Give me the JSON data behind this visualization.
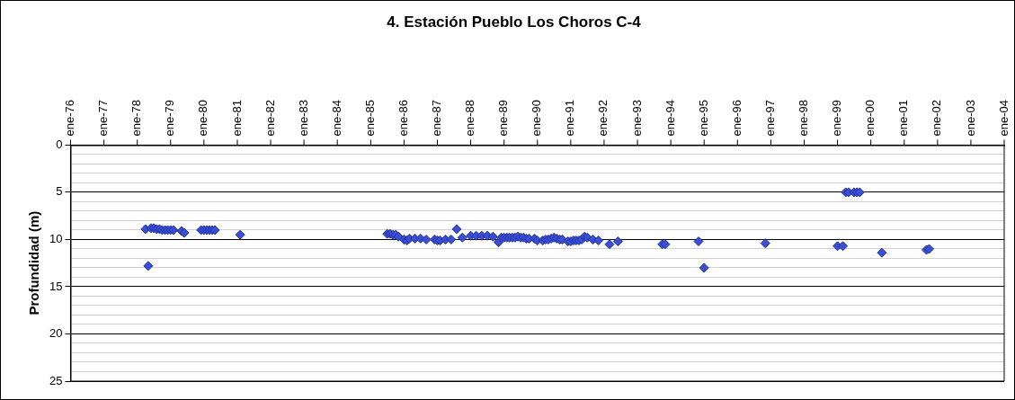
{
  "chart_data": {
    "type": "scatter",
    "title": "4. Estación Pueblo Los Choros C-4",
    "ylabel": "Profundidad (m)",
    "x": [
      "1978-04",
      "1978-05",
      "1978-06",
      "1978-07",
      "1978-08",
      "1978-09",
      "1978-10",
      "1978-11",
      "1978-12",
      "1979-01",
      "1979-02",
      "1979-05",
      "1979-06",
      "1979-12",
      "1980-01",
      "1980-02",
      "1980-03",
      "1980-04",
      "1980-05",
      "1981-02",
      "1985-07",
      "1985-08",
      "1985-09",
      "1985-10",
      "1985-11",
      "1986-01",
      "1986-02",
      "1986-03",
      "1986-05",
      "1986-07",
      "1986-09",
      "1986-12",
      "1987-01",
      "1987-02",
      "1987-04",
      "1987-06",
      "1987-08",
      "1987-10",
      "1988-01",
      "1988-03",
      "1988-05",
      "1988-07",
      "1988-09",
      "1988-11",
      "1988-12",
      "1989-01",
      "1989-02",
      "1989-03",
      "1989-04",
      "1989-05",
      "1989-06",
      "1989-07",
      "1989-08",
      "1989-09",
      "1989-10",
      "1989-12",
      "1990-01",
      "1990-03",
      "1990-04",
      "1990-05",
      "1990-06",
      "1990-07",
      "1990-08",
      "1990-09",
      "1990-10",
      "1990-12",
      "1991-01",
      "1991-02",
      "1991-03",
      "1991-04",
      "1991-05",
      "1991-06",
      "1991-07",
      "1991-09",
      "1991-11",
      "1992-03",
      "1992-06",
      "1993-10",
      "1993-11",
      "1994-11",
      "1995-01",
      "1996-11",
      "1999-01",
      "1999-03",
      "1999-04",
      "1999-05",
      "1999-07",
      "1999-08",
      "1999-09",
      "2000-05",
      "2001-09",
      "2001-10"
    ],
    "values": [
      8.9,
      12.8,
      8.8,
      8.8,
      8.9,
      8.9,
      9.0,
      9.0,
      9.0,
      9.0,
      9.0,
      9.1,
      9.3,
      9.0,
      9.0,
      9.0,
      9.0,
      9.0,
      9.0,
      9.5,
      9.4,
      9.4,
      9.5,
      9.5,
      9.7,
      10.0,
      10.1,
      9.9,
      9.9,
      9.9,
      10.0,
      10.0,
      10.1,
      10.1,
      10.0,
      10.0,
      8.9,
      9.8,
      9.6,
      9.6,
      9.6,
      9.6,
      9.7,
      10.3,
      9.8,
      9.8,
      9.8,
      9.8,
      9.8,
      9.8,
      9.7,
      9.8,
      9.8,
      9.9,
      9.9,
      9.9,
      10.1,
      10.1,
      10.0,
      10.0,
      9.9,
      9.8,
      9.9,
      10.0,
      10.0,
      10.2,
      10.2,
      10.1,
      10.1,
      10.1,
      10.0,
      9.7,
      9.8,
      10.0,
      10.1,
      10.5,
      10.2,
      10.5,
      10.5,
      10.2,
      13.0,
      10.4,
      10.7,
      10.7,
      5.0,
      5.0,
      5.0,
      5.0,
      5.0,
      11.4,
      11.1,
      11.0
    ],
    "color": "#3a4fd6",
    "marker": "diamond",
    "grid": "y",
    "legend": false,
    "xlim": [
      "1976-01",
      "2004-01"
    ],
    "xticks": [
      {
        "value": "1976-01",
        "label": "ene-76"
      },
      {
        "value": "1977-01",
        "label": "ene-77"
      },
      {
        "value": "1978-01",
        "label": "ene-78"
      },
      {
        "value": "1979-01",
        "label": "ene-79"
      },
      {
        "value": "1980-01",
        "label": "ene-80"
      },
      {
        "value": "1981-01",
        "label": "ene-81"
      },
      {
        "value": "1982-01",
        "label": "ene-82"
      },
      {
        "value": "1983-01",
        "label": "ene-83"
      },
      {
        "value": "1984-01",
        "label": "ene-84"
      },
      {
        "value": "1985-01",
        "label": "ene-85"
      },
      {
        "value": "1986-01",
        "label": "ene-86"
      },
      {
        "value": "1987-01",
        "label": "ene-87"
      },
      {
        "value": "1988-01",
        "label": "ene-88"
      },
      {
        "value": "1989-01",
        "label": "ene-89"
      },
      {
        "value": "1990-01",
        "label": "ene-90"
      },
      {
        "value": "1991-01",
        "label": "ene-91"
      },
      {
        "value": "1992-01",
        "label": "ene-92"
      },
      {
        "value": "1993-01",
        "label": "ene-93"
      },
      {
        "value": "1994-01",
        "label": "ene-94"
      },
      {
        "value": "1995-01",
        "label": "ene-95"
      },
      {
        "value": "1996-01",
        "label": "ene-96"
      },
      {
        "value": "1997-01",
        "label": "ene-97"
      },
      {
        "value": "1998-01",
        "label": "ene-98"
      },
      {
        "value": "1999-01",
        "label": "ene-99"
      },
      {
        "value": "2000-01",
        "label": "ene-00"
      },
      {
        "value": "2001-01",
        "label": "ene-01"
      },
      {
        "value": "2002-01",
        "label": "ene-02"
      },
      {
        "value": "2003-01",
        "label": "ene-03"
      },
      {
        "value": "2004-01",
        "label": "ene-04"
      }
    ],
    "ylim": [
      25,
      0
    ],
    "yticks": [
      0,
      {
        "value": 1,
        "label": null
      },
      {
        "value": 2,
        "label": null
      },
      {
        "value": 3,
        "label": null
      },
      {
        "value": 4,
        "label": null
      },
      5,
      {
        "value": 6,
        "label": null
      },
      {
        "value": 7,
        "label": null
      },
      {
        "value": 8,
        "label": null
      },
      {
        "value": 9,
        "label": null
      },
      10,
      {
        "value": 11,
        "label": null
      },
      {
        "value": 12,
        "label": null
      },
      {
        "value": 13,
        "label": null
      },
      {
        "value": 14,
        "label": null
      },
      15,
      {
        "value": 16,
        "label": null
      },
      {
        "value": 17,
        "label": null
      },
      {
        "value": 18,
        "label": null
      },
      {
        "value": 19,
        "label": null
      },
      20,
      {
        "value": 21,
        "label": null
      },
      {
        "value": 22,
        "label": null
      },
      {
        "value": 23,
        "label": null
      },
      {
        "value": 24,
        "label": null
      },
      25
    ]
  }
}
